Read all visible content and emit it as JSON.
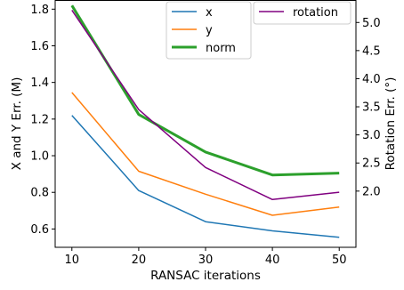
{
  "chart_data": {
    "type": "line",
    "x": [
      10,
      20,
      30,
      40,
      50
    ],
    "xlabel": "RANSAC iterations",
    "ylabel_left": "X and Y Err. (M)",
    "ylabel_right": "Rotation Err. (°)",
    "xlim": [
      7.5,
      52.5
    ],
    "ylim_left": [
      0.5,
      1.85
    ],
    "ylim_right": [
      1.0,
      5.4
    ],
    "xticks": [
      "10",
      "20",
      "30",
      "40",
      "50"
    ],
    "yticks_left": [
      "0.6",
      "0.8",
      "1.0",
      "1.2",
      "1.4",
      "1.6",
      "1.8"
    ],
    "yticks_right": [
      "2.0",
      "2.5",
      "3.0",
      "3.5",
      "4.0",
      "4.5",
      "5.0"
    ],
    "grid": false,
    "series": [
      {
        "name": "x",
        "axis": "left",
        "color": "#1f77b4",
        "values": [
          1.22,
          0.81,
          0.64,
          0.59,
          0.555
        ]
      },
      {
        "name": "y",
        "axis": "left",
        "color": "#ff7f0e",
        "values": [
          1.345,
          0.915,
          0.79,
          0.675,
          0.72
        ]
      },
      {
        "name": "norm",
        "axis": "left",
        "color": "#2ca02c",
        "values": [
          1.82,
          1.225,
          1.02,
          0.895,
          0.905
        ]
      },
      {
        "name": "rotation",
        "axis": "right",
        "color": "#800080",
        "values": [
          5.22,
          3.45,
          2.42,
          1.85,
          1.98
        ]
      }
    ],
    "legend_left": {
      "placement": "top-center",
      "items": [
        "x",
        "y",
        "norm"
      ]
    },
    "legend_right": {
      "placement": "top-right",
      "items": [
        "rotation"
      ]
    }
  }
}
